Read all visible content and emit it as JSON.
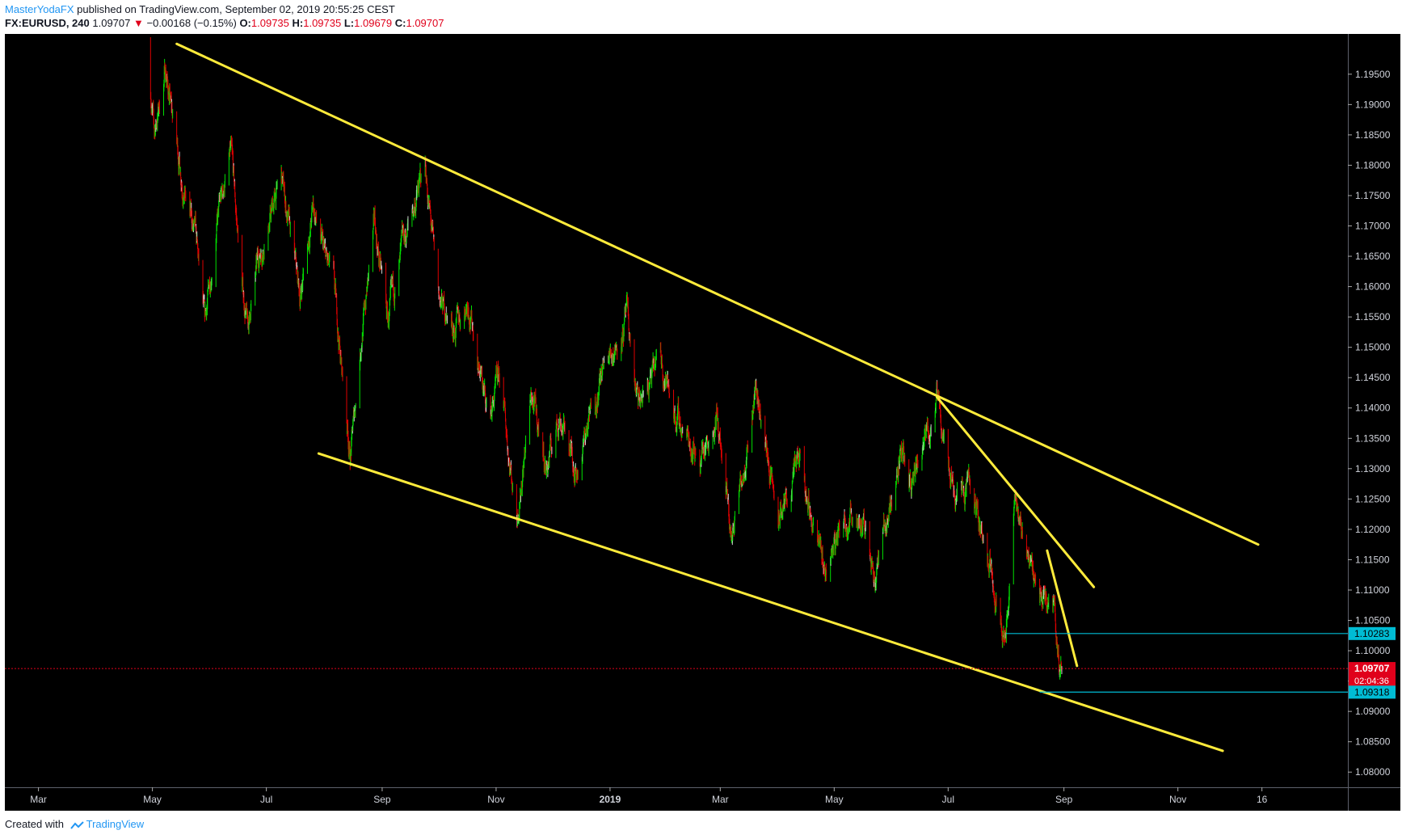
{
  "header": {
    "author": "MasterYodaFX",
    "published_text": "published on TradingView.com, September 02, 2019 20:55:25 CEST",
    "symbol": "FX:EURUSD, 240",
    "last": "1.09707",
    "change_arrow": "▼",
    "change": "−0.00168 (−0.15%)",
    "open_label": "O:",
    "open": "1.09735",
    "high_label": "H:",
    "high": "1.09735",
    "low_label": "L:",
    "low": "1.09679",
    "close_label": "C:",
    "close": "1.09707"
  },
  "footer": {
    "created_with": "Created with",
    "brand": "TradingView",
    "brand_icon": "tradingview-logo-icon"
  },
  "colors": {
    "background": "#000000",
    "trendline": "#ffeb3b",
    "level_line": "#00bcd4",
    "current_price": "#e0001b",
    "candle_up": "#00e000",
    "candle_down": "#e00000",
    "candle_neutral": "#d0d0d0"
  },
  "chart_data": {
    "type": "candlestick",
    "title": "",
    "xlabel": "",
    "ylabel": "",
    "x_ticks": [
      {
        "label": "Mar",
        "date": "2018-03-01"
      },
      {
        "label": "May",
        "date": "2018-05-01"
      },
      {
        "label": "Jul",
        "date": "2018-07-01"
      },
      {
        "label": "Sep",
        "date": "2018-09-01"
      },
      {
        "label": "Nov",
        "date": "2018-11-01"
      },
      {
        "label": "2019",
        "date": "2019-01-01"
      },
      {
        "label": "Mar",
        "date": "2019-03-01"
      },
      {
        "label": "May",
        "date": "2019-05-01"
      },
      {
        "label": "Jul",
        "date": "2019-07-01"
      },
      {
        "label": "Sep",
        "date": "2019-09-01"
      },
      {
        "label": "Nov",
        "date": "2019-11-01"
      },
      {
        "label": "16",
        "date": "2019-12-16"
      }
    ],
    "x_range": [
      "2018-02-11",
      "2020-01-31"
    ],
    "y_ticks": [
      "1.19500",
      "1.19000",
      "1.18500",
      "1.18000",
      "1.17500",
      "1.17000",
      "1.16500",
      "1.16000",
      "1.15500",
      "1.15000",
      "1.14500",
      "1.14000",
      "1.13500",
      "1.13000",
      "1.12500",
      "1.12000",
      "1.11500",
      "1.11000",
      "1.10500",
      "1.10000",
      "1.09500",
      "1.09000",
      "1.08500",
      "1.08000"
    ],
    "ylim": [
      1.0775,
      1.2015
    ],
    "grid": false,
    "price_path": [
      {
        "date": "2018-04-28",
        "price": 1.2
      },
      {
        "date": "2018-05-02",
        "price": 1.185
      },
      {
        "date": "2018-05-08",
        "price": 1.196
      },
      {
        "date": "2018-05-12",
        "price": 1.187
      },
      {
        "date": "2018-05-18",
        "price": 1.176
      },
      {
        "date": "2018-05-24",
        "price": 1.168
      },
      {
        "date": "2018-05-29",
        "price": 1.153
      },
      {
        "date": "2018-06-04",
        "price": 1.17
      },
      {
        "date": "2018-06-12",
        "price": 1.182
      },
      {
        "date": "2018-06-18",
        "price": 1.16
      },
      {
        "date": "2018-06-21",
        "price": 1.153
      },
      {
        "date": "2018-06-27",
        "price": 1.165
      },
      {
        "date": "2018-07-09",
        "price": 1.178
      },
      {
        "date": "2018-07-19",
        "price": 1.158
      },
      {
        "date": "2018-07-26",
        "price": 1.173
      },
      {
        "date": "2018-08-01",
        "price": 1.165
      },
      {
        "date": "2018-08-06",
        "price": 1.16
      },
      {
        "date": "2018-08-15",
        "price": 1.132
      },
      {
        "date": "2018-08-21",
        "price": 1.152
      },
      {
        "date": "2018-08-28",
        "price": 1.17
      },
      {
        "date": "2018-09-04",
        "price": 1.154
      },
      {
        "date": "2018-09-12",
        "price": 1.166
      },
      {
        "date": "2018-09-24",
        "price": 1.18
      },
      {
        "date": "2018-10-01",
        "price": 1.158
      },
      {
        "date": "2018-10-10",
        "price": 1.153
      },
      {
        "date": "2018-10-17",
        "price": 1.158
      },
      {
        "date": "2018-10-28",
        "price": 1.138
      },
      {
        "date": "2018-11-03",
        "price": 1.145
      },
      {
        "date": "2018-11-12",
        "price": 1.122
      },
      {
        "date": "2018-11-20",
        "price": 1.142
      },
      {
        "date": "2018-11-28",
        "price": 1.13
      },
      {
        "date": "2018-12-05",
        "price": 1.139
      },
      {
        "date": "2018-12-14",
        "price": 1.13
      },
      {
        "date": "2018-12-27",
        "price": 1.145
      },
      {
        "date": "2019-01-10",
        "price": 1.155
      },
      {
        "date": "2019-01-16",
        "price": 1.14
      },
      {
        "date": "2019-01-28",
        "price": 1.148
      },
      {
        "date": "2019-02-06",
        "price": 1.138
      },
      {
        "date": "2019-02-18",
        "price": 1.132
      },
      {
        "date": "2019-02-27",
        "price": 1.139
      },
      {
        "date": "2019-03-07",
        "price": 1.118
      },
      {
        "date": "2019-03-20",
        "price": 1.144
      },
      {
        "date": "2019-04-01",
        "price": 1.121
      },
      {
        "date": "2019-04-12",
        "price": 1.131
      },
      {
        "date": "2019-04-26",
        "price": 1.113
      },
      {
        "date": "2019-05-06",
        "price": 1.122
      },
      {
        "date": "2019-05-14",
        "price": 1.123
      },
      {
        "date": "2019-05-23",
        "price": 1.113
      },
      {
        "date": "2019-06-07",
        "price": 1.134
      },
      {
        "date": "2019-06-12",
        "price": 1.127
      },
      {
        "date": "2019-06-25",
        "price": 1.141
      },
      {
        "date": "2019-07-04",
        "price": 1.127
      },
      {
        "date": "2019-07-11",
        "price": 1.128
      },
      {
        "date": "2019-07-18",
        "price": 1.121
      },
      {
        "date": "2019-08-01",
        "price": 1.103
      },
      {
        "date": "2019-08-06",
        "price": 1.125
      },
      {
        "date": "2019-08-13",
        "price": 1.116
      },
      {
        "date": "2019-08-20",
        "price": 1.109
      },
      {
        "date": "2019-08-27",
        "price": 1.108
      },
      {
        "date": "2019-08-30",
        "price": 1.096
      },
      {
        "date": "2019-09-02",
        "price": 1.09707
      }
    ],
    "trendlines": [
      {
        "name": "upper-channel",
        "start": {
          "date": "2018-05-14",
          "price": 1.2
        },
        "end": {
          "date": "2019-12-14",
          "price": 1.1175
        }
      },
      {
        "name": "lower-channel",
        "start": {
          "date": "2018-07-29",
          "price": 1.1325
        },
        "end": {
          "date": "2019-11-25",
          "price": 1.0835
        }
      },
      {
        "name": "steep-downtrend",
        "start": {
          "date": "2019-06-25",
          "price": 1.1418
        },
        "end": {
          "date": "2019-09-17",
          "price": 1.1105
        }
      },
      {
        "name": "short-downtrend",
        "start": {
          "date": "2019-08-23",
          "price": 1.1165
        },
        "end": {
          "date": "2019-09-08",
          "price": 1.0975
        }
      }
    ],
    "levels": [
      {
        "name": "resistance-level",
        "price": 1.10283,
        "label": "1.10283",
        "from_date": "2019-08-01"
      },
      {
        "name": "support-level",
        "price": 1.09318,
        "label": "1.09318",
        "from_date": "2019-08-19"
      }
    ],
    "current_price": {
      "price": 1.09707,
      "label": "1.09707",
      "countdown": "02:04:36"
    }
  }
}
